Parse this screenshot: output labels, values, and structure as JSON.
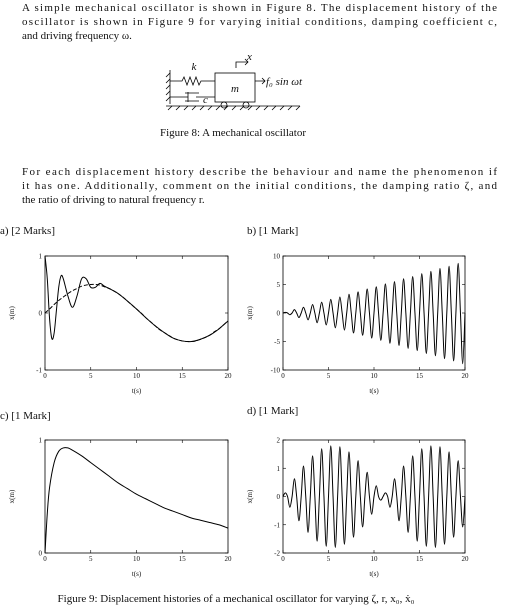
{
  "intro": {
    "lines": [
      "A simple mechanical oscillator is shown in Figure 8.  The displacement history of the",
      "oscillator is shown in Figure 9 for varying initial conditions, damping coefficient c,",
      "and driving frequency ω."
    ]
  },
  "figure8": {
    "spring": "k",
    "damper": "c",
    "mass": "m",
    "displacement": "x",
    "force": "f₀ sin ωt",
    "caption": "Figure 8: A mechanical oscillator"
  },
  "question": {
    "lines": [
      "For each displacement history describe the behaviour and name the phenomenon if",
      "it has one.  Additionally, comment on the initial conditions, the damping ratio ζ, and",
      "the ratio of driving to natural frequency r."
    ]
  },
  "figure9": {
    "caption": "Figure 9: Displacement histories of a mechanical oscillator for varying ζ, r, x₀, ẋ₀"
  },
  "chart_data": [
    {
      "type": "line",
      "title": "a) [2 Marks]",
      "xlabel": "t(s)",
      "ylabel": "x(m)",
      "xlim": [
        0,
        20
      ],
      "ylim": [
        -1,
        1
      ],
      "xticks": [
        0,
        5,
        10,
        15,
        20
      ],
      "yticks": [
        -1,
        0,
        1
      ],
      "series": [
        {
          "color": "#000000",
          "dashed": false,
          "x": [
            0,
            0.25,
            0.5,
            0.75,
            1,
            1.25,
            1.5,
            1.75,
            2,
            2.5,
            3,
            3.5,
            4,
            4.5,
            5,
            5.5,
            6,
            6.5,
            7,
            8,
            9,
            10,
            11,
            12,
            13,
            14,
            15,
            16,
            17,
            18,
            19,
            20
          ],
          "values": [
            1,
            0.6,
            -0.1,
            -0.45,
            -0.35,
            0.05,
            0.45,
            0.65,
            0.6,
            0.3,
            0.1,
            0.3,
            0.6,
            0.6,
            0.45,
            0.45,
            0.52,
            0.47,
            0.43,
            0.34,
            0.21,
            0.07,
            -0.08,
            -0.22,
            -0.34,
            -0.44,
            -0.49,
            -0.5,
            -0.46,
            -0.39,
            -0.28,
            -0.14
          ]
        },
        {
          "color": "#000000",
          "dashed": true,
          "x": [
            0,
            0.5,
            1,
            1.5,
            2,
            2.5,
            3,
            3.5,
            4,
            4.5,
            5,
            5.5,
            6,
            6.5,
            7,
            7.5,
            8,
            8.5,
            9,
            9.5,
            10,
            10.5,
            11,
            11.5,
            12,
            12.5,
            13,
            13.5,
            14,
            14.5,
            15,
            15.5,
            16,
            16.5,
            17,
            17.5,
            18,
            18.5,
            19,
            19.5,
            20
          ],
          "values": [
            0,
            0.07,
            0.15,
            0.22,
            0.28,
            0.34,
            0.39,
            0.43,
            0.47,
            0.49,
            0.5,
            0.5,
            0.49,
            0.46,
            0.43,
            0.39,
            0.34,
            0.28,
            0.21,
            0.14,
            0.07,
            0,
            -0.08,
            -0.15,
            -0.22,
            -0.29,
            -0.34,
            -0.39,
            -0.44,
            -0.47,
            -0.49,
            -0.5,
            -0.5,
            -0.49,
            -0.46,
            -0.43,
            -0.39,
            -0.33,
            -0.28,
            -0.21,
            -0.14
          ]
        }
      ]
    },
    {
      "type": "line",
      "title": "b) [1 Mark]",
      "xlabel": "t(s)",
      "ylabel": "x(m)",
      "xlim": [
        0,
        20
      ],
      "ylim": [
        -10,
        10
      ],
      "xticks": [
        0,
        5,
        10,
        15,
        20
      ],
      "yticks": [
        -10,
        -5,
        0,
        5,
        10
      ],
      "series": [
        {
          "color": "#000000",
          "dashed": false,
          "x": [
            0,
            0.25,
            0.5,
            0.75,
            1,
            1.25,
            1.5,
            1.75,
            2,
            2.25,
            2.5,
            2.75,
            3,
            3.25,
            3.5,
            3.75,
            4,
            4.25,
            4.5,
            4.75,
            5,
            5.25,
            5.5,
            5.75,
            6,
            6.25,
            6.5,
            6.75,
            7,
            7.25,
            7.5,
            7.75,
            8,
            8.25,
            8.5,
            8.75,
            9,
            9.25,
            9.5,
            9.75,
            10,
            10.25,
            10.5,
            10.75,
            11,
            11.25,
            11.5,
            11.75,
            12,
            12.25,
            12.5,
            12.75,
            13,
            13.25,
            13.5,
            13.75,
            14,
            14.25,
            14.5,
            14.75,
            15,
            15.25,
            15.5,
            15.75,
            16,
            16.25,
            16.5,
            16.75,
            17,
            17.25,
            17.5,
            17.75,
            18,
            18.25,
            18.5,
            18.75,
            19,
            19.25,
            19.5,
            19.75,
            20
          ],
          "values": [
            0,
            0.1,
            0,
            -0.3,
            0,
            0.6,
            0,
            -0.8,
            0,
            1.0,
            0,
            -1.2,
            0,
            1.5,
            0,
            -1.7,
            0,
            1.9,
            0,
            -2.1,
            0,
            2.4,
            0,
            -2.6,
            0,
            2.8,
            0,
            -3.0,
            0,
            3.3,
            0,
            -3.5,
            0,
            3.7,
            0,
            -3.9,
            0,
            4.2,
            0,
            -4.4,
            0,
            4.6,
            0,
            -4.8,
            0,
            5.1,
            0,
            -5.3,
            0,
            5.5,
            0,
            -5.7,
            0,
            6.0,
            0,
            -6.2,
            0,
            6.4,
            0,
            -6.6,
            0,
            6.9,
            0,
            -7.1,
            0,
            7.3,
            0,
            -7.5,
            0,
            7.8,
            0,
            -8.0,
            0,
            8.2,
            0,
            -8.4,
            0,
            8.7,
            0,
            -8.9,
            0
          ]
        }
      ]
    },
    {
      "type": "line",
      "title": "c) [1 Mark]",
      "xlabel": "t(s)",
      "ylabel": "x(m)",
      "xlim": [
        0,
        20
      ],
      "ylim": [
        0,
        1
      ],
      "xticks": [
        0,
        5,
        10,
        15,
        20
      ],
      "yticks": [
        0,
        1
      ],
      "series": [
        {
          "color": "#000000",
          "dashed": false,
          "x": [
            0,
            0.25,
            0.5,
            1,
            1.5,
            2,
            2.5,
            3,
            4,
            5,
            6,
            7,
            8,
            9,
            10,
            11,
            12,
            13,
            14,
            15,
            16,
            17,
            18,
            19,
            20
          ],
          "values": [
            0,
            0.35,
            0.58,
            0.8,
            0.9,
            0.93,
            0.93,
            0.91,
            0.86,
            0.8,
            0.74,
            0.68,
            0.62,
            0.57,
            0.52,
            0.48,
            0.44,
            0.4,
            0.37,
            0.34,
            0.31,
            0.29,
            0.27,
            0.25,
            0.22
          ]
        }
      ]
    },
    {
      "type": "line",
      "title": "d) [1 Mark]",
      "xlabel": "t(s)",
      "ylabel": "x(m)",
      "xlim": [
        0,
        20
      ],
      "ylim": [
        -2,
        2
      ],
      "xticks": [
        0,
        5,
        10,
        15,
        20
      ],
      "yticks": [
        -2,
        -1,
        0,
        1,
        2
      ],
      "series": [
        {
          "color": "#000000",
          "dashed": false,
          "x": [
            0,
            0.25,
            0.5,
            0.75,
            1,
            1.25,
            1.5,
            1.75,
            2,
            2.25,
            2.5,
            2.75,
            3,
            3.25,
            3.5,
            3.75,
            4,
            4.25,
            4.5,
            4.75,
            5,
            5.25,
            5.5,
            5.75,
            6,
            6.25,
            6.5,
            6.75,
            7,
            7.25,
            7.5,
            7.75,
            8,
            8.25,
            8.5,
            8.75,
            9,
            9.25,
            9.5,
            9.75,
            10,
            10.25,
            10.5,
            10.75,
            11,
            11.25,
            11.5,
            11.75,
            12,
            12.25,
            12.5,
            12.75,
            13,
            13.25,
            13.5,
            13.75,
            14,
            14.25,
            14.5,
            14.75,
            15,
            15.25,
            15.5,
            15.75,
            16,
            16.25,
            16.5,
            16.75,
            17,
            17.25,
            17.5,
            17.75,
            18,
            18.25,
            18.5,
            18.75,
            19,
            19.25,
            19.5,
            19.75,
            20
          ],
          "values": [
            0,
            0.13,
            0,
            -0.38,
            0,
            0.63,
            0,
            -0.86,
            0,
            1.08,
            0,
            -1.27,
            0,
            1.44,
            0,
            -1.58,
            0,
            1.69,
            0,
            -1.76,
            0,
            1.79,
            0,
            -1.8,
            0,
            1.76,
            0,
            -1.69,
            0,
            1.58,
            0,
            -1.44,
            0,
            1.27,
            0,
            -1.08,
            0,
            0.86,
            0,
            -0.63,
            0,
            0.38,
            0,
            -0.13,
            0,
            0.13,
            0,
            -0.38,
            0,
            0.63,
            0,
            -0.86,
            0,
            1.08,
            0,
            -1.27,
            0,
            1.44,
            0,
            -1.58,
            0,
            1.69,
            0,
            -1.76,
            0,
            1.79,
            0,
            -1.8,
            0,
            1.76,
            0,
            -1.69,
            0,
            1.58,
            0,
            -1.44,
            0,
            1.27,
            0,
            -1.08,
            0
          ]
        }
      ]
    }
  ]
}
